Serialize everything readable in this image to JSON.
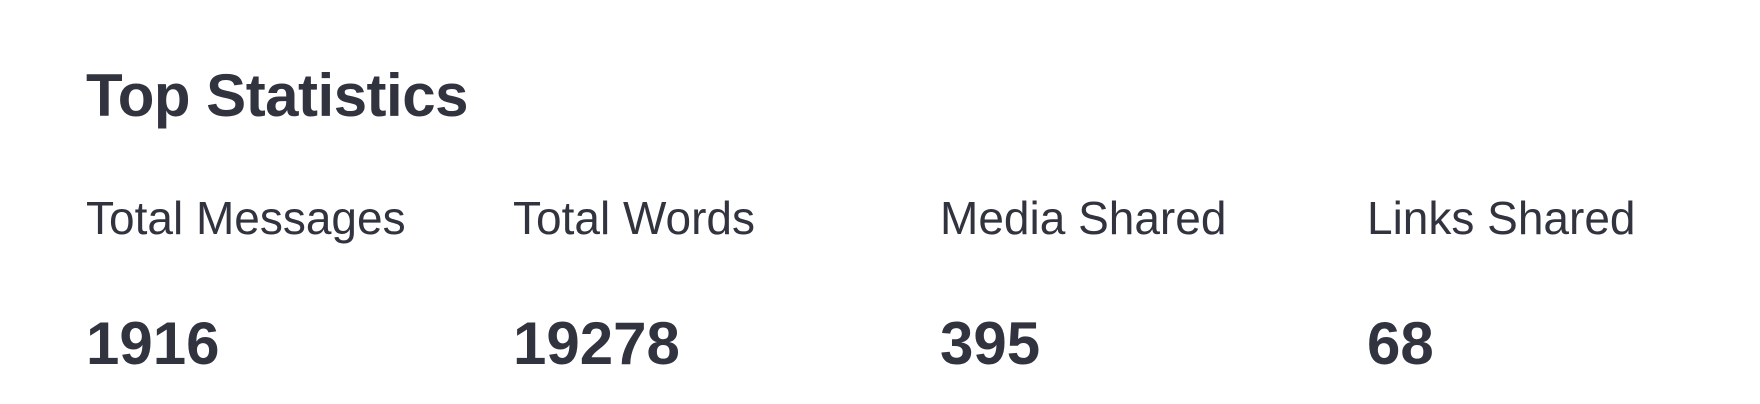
{
  "header": {
    "title": "Top Statistics"
  },
  "metrics": [
    {
      "label": "Total Messages",
      "value": "1916"
    },
    {
      "label": "Total Words",
      "value": "19278"
    },
    {
      "label": "Media Shared",
      "value": "395"
    },
    {
      "label": "Links Shared",
      "value": "68"
    }
  ],
  "colors": {
    "text": "#31333f",
    "background": "#ffffff"
  }
}
